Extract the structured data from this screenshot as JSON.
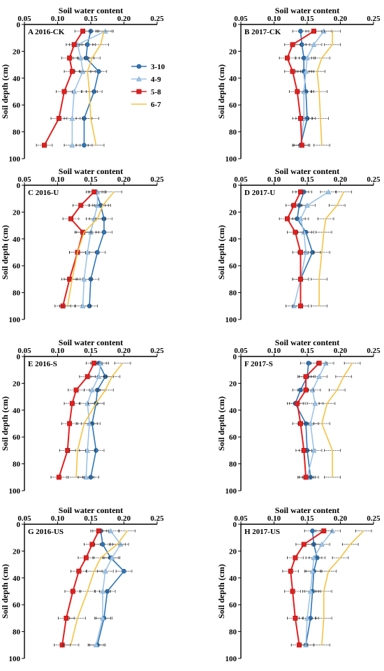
{
  "series_legend": [
    {
      "name": "3-10",
      "color": "#2e75b6",
      "marker": "circle"
    },
    {
      "name": "4-9",
      "color": "#9dc3e6",
      "marker": "triangle"
    },
    {
      "name": "5-8",
      "color": "#e02020",
      "marker": "square"
    },
    {
      "name": "6-7",
      "color": "#f5c242",
      "marker": "none"
    }
  ],
  "colors": {
    "series_3_10": "#2e75b6",
    "series_4_9": "#9dc3e6",
    "series_5_8": "#e02020",
    "series_6_7": "#f5c242",
    "error_bars": "#000000"
  },
  "chart_data": [
    {
      "type": "line",
      "panel_label": "A  2016-CK",
      "xlabel": "Soil water content",
      "ylabel": "Soil depth (cm)",
      "xlim": [
        0.05,
        0.25
      ],
      "ylim": [
        0,
        100
      ],
      "xticks": [
        "0.05",
        "0.10",
        "0.15",
        "0.20",
        "0.25"
      ],
      "yticks": [
        "0",
        "20",
        "40",
        "60",
        "80",
        "100"
      ],
      "y": [
        5,
        15,
        25,
        35,
        50,
        70,
        90
      ],
      "legend": "right-middle",
      "series": [
        {
          "name": "3-10",
          "values": [
            0.15,
            0.145,
            0.143,
            0.162,
            0.155,
            0.14,
            0.14
          ]
        },
        {
          "name": "4-9",
          "values": [
            0.172,
            0.13,
            0.135,
            0.138,
            0.125,
            0.122,
            0.122
          ]
        },
        {
          "name": "5-8",
          "values": [
            0.138,
            0.125,
            0.118,
            0.122,
            0.11,
            0.102,
            0.08
          ]
        },
        {
          "name": "6-7",
          "values": [
            0.17,
            0.165,
            0.152,
            0.145,
            0.148,
            0.15,
            0.158
          ]
        }
      ]
    },
    {
      "type": "line",
      "panel_label": "B  2017-CK",
      "xlabel": "Soil water content",
      "ylabel": "Soil depth (cm)",
      "xlim": [
        0.05,
        0.25
      ],
      "ylim": [
        0,
        100
      ],
      "xticks": [
        "0.05",
        "0.10",
        "0.15",
        "0.20",
        "0.25"
      ],
      "yticks": [
        "0",
        "20",
        "40",
        "60",
        "80",
        "100"
      ],
      "y": [
        5,
        15,
        25,
        35,
        50,
        70,
        90
      ],
      "series": [
        {
          "name": "3-10",
          "values": [
            0.14,
            0.142,
            0.145,
            0.145,
            0.148,
            0.15,
            0.14
          ]
        },
        {
          "name": "4-9",
          "values": [
            0.175,
            0.16,
            0.15,
            0.148,
            0.145,
            0.145,
            0.14
          ]
        },
        {
          "name": "5-8",
          "values": [
            0.16,
            0.128,
            0.12,
            0.128,
            0.135,
            0.14,
            0.142
          ]
        },
        {
          "name": "6-7",
          "values": [
            0.188,
            0.188,
            0.172,
            0.165,
            0.168,
            0.17,
            0.172
          ]
        }
      ]
    },
    {
      "type": "line",
      "panel_label": "C  2016-U",
      "xlabel": "Soil water content",
      "ylabel": "Soil depth (cm)",
      "xlim": [
        0.05,
        0.25
      ],
      "ylim": [
        0,
        100
      ],
      "xticks": [
        "0.05",
        "0.10",
        "0.15",
        "0.20",
        "0.25"
      ],
      "yticks": [
        "0",
        "20",
        "40",
        "60",
        "80",
        "100"
      ],
      "y": [
        5,
        15,
        25,
        35,
        50,
        70,
        90
      ],
      "series": [
        {
          "name": "3-10",
          "values": [
            0.158,
            0.165,
            0.17,
            0.17,
            0.16,
            0.15,
            0.148
          ]
        },
        {
          "name": "4-9",
          "values": [
            0.16,
            0.16,
            0.155,
            0.15,
            0.145,
            0.14,
            0.138
          ]
        },
        {
          "name": "5-8",
          "values": [
            0.155,
            0.135,
            0.12,
            0.138,
            0.13,
            0.118,
            0.108
          ]
        },
        {
          "name": "6-7",
          "values": [
            0.185,
            0.168,
            0.16,
            0.14,
            0.13,
            0.122,
            0.115
          ]
        }
      ]
    },
    {
      "type": "line",
      "panel_label": "D  2017-U",
      "xlabel": "Soil water content",
      "ylabel": "Soil depth (cm)",
      "xlim": [
        0.05,
        0.25
      ],
      "ylim": [
        0,
        100
      ],
      "xticks": [
        "0.05",
        "0.10",
        "0.15",
        "0.20",
        "0.25"
      ],
      "yticks": [
        "0",
        "20",
        "40",
        "60",
        "80",
        "100"
      ],
      "y": [
        5,
        15,
        25,
        35,
        50,
        70,
        90
      ],
      "series": [
        {
          "name": "3-10",
          "values": [
            0.145,
            0.138,
            0.135,
            0.148,
            0.158,
            0.14,
            0.14
          ]
        },
        {
          "name": "4-9",
          "values": [
            0.182,
            0.15,
            0.14,
            0.145,
            0.148,
            0.14,
            0.13
          ]
        },
        {
          "name": "5-8",
          "values": [
            0.14,
            0.13,
            0.12,
            0.132,
            0.14,
            0.14,
            0.14
          ]
        },
        {
          "name": "6-7",
          "values": [
            0.205,
            0.195,
            0.178,
            0.175,
            0.172,
            0.168,
            0.168
          ]
        }
      ]
    },
    {
      "type": "line",
      "panel_label": "E  2016-S",
      "xlabel": "Soil water content",
      "ylabel": "Soil depth (cm)",
      "xlim": [
        0.05,
        0.25
      ],
      "ylim": [
        0,
        100
      ],
      "xticks": [
        "0.05",
        "0.10",
        "0.15",
        "0.20",
        "0.25"
      ],
      "yticks": [
        "0",
        "20",
        "40",
        "60",
        "80",
        "100"
      ],
      "y": [
        5,
        15,
        25,
        35,
        50,
        70,
        90
      ],
      "series": [
        {
          "name": "3-10",
          "values": [
            0.162,
            0.172,
            0.16,
            0.158,
            0.152,
            0.158,
            0.15
          ]
        },
        {
          "name": "4-9",
          "values": [
            0.165,
            0.162,
            0.152,
            0.145,
            0.148,
            0.145,
            0.143
          ]
        },
        {
          "name": "5-8",
          "values": [
            0.155,
            0.145,
            0.128,
            0.122,
            0.118,
            0.115,
            0.102
          ]
        },
        {
          "name": "6-7",
          "values": [
            0.198,
            0.182,
            0.172,
            0.158,
            0.14,
            0.13,
            0.128
          ]
        }
      ]
    },
    {
      "type": "line",
      "panel_label": "F  2017-S",
      "xlabel": "Soil water content",
      "ylabel": "Soil depth (cm)",
      "xlim": [
        0.05,
        0.25
      ],
      "ylim": [
        0,
        100
      ],
      "xticks": [
        "0.05",
        "0.10",
        "0.15",
        "0.20",
        "0.25"
      ],
      "yticks": [
        "0",
        "20",
        "40",
        "60",
        "80",
        "100"
      ],
      "y": [
        5,
        15,
        25,
        35,
        50,
        70,
        90
      ],
      "series": [
        {
          "name": "3-10",
          "values": [
            0.152,
            0.15,
            0.14,
            0.132,
            0.148,
            0.15,
            0.155
          ]
        },
        {
          "name": "4-9",
          "values": [
            0.178,
            0.168,
            0.158,
            0.162,
            0.155,
            0.16,
            0.15
          ]
        },
        {
          "name": "5-8",
          "values": [
            0.168,
            0.148,
            0.148,
            0.135,
            0.14,
            0.145,
            0.148
          ]
        },
        {
          "name": "6-7",
          "values": [
            0.218,
            0.205,
            0.195,
            0.18,
            0.172,
            0.188,
            0.188
          ]
        }
      ]
    },
    {
      "type": "line",
      "panel_label": "G  2016-US",
      "xlabel": "Soil water content",
      "ylabel": "Soil depth (cm)",
      "xlim": [
        0.05,
        0.25
      ],
      "ylim": [
        0,
        100
      ],
      "xticks": [
        "0.05",
        "0.10",
        "0.15",
        "0.20",
        "0.25"
      ],
      "yticks": [
        "0",
        "20",
        "40",
        "60",
        "80",
        "100"
      ],
      "y": [
        5,
        15,
        25,
        35,
        50,
        70,
        90
      ],
      "series": [
        {
          "name": "3-10",
          "values": [
            0.165,
            0.168,
            0.18,
            0.2,
            0.175,
            0.17,
            0.16
          ]
        },
        {
          "name": "4-9",
          "values": [
            0.18,
            0.195,
            0.182,
            0.172,
            0.168,
            0.168,
            0.158
          ]
        },
        {
          "name": "5-8",
          "values": [
            0.162,
            0.152,
            0.143,
            0.132,
            0.123,
            0.113,
            0.107
          ]
        },
        {
          "name": "6-7",
          "values": [
            0.205,
            0.19,
            0.165,
            0.155,
            0.145,
            0.13,
            0.12
          ]
        }
      ]
    },
    {
      "type": "line",
      "panel_label": "H  2017-US",
      "xlabel": "Soil water content",
      "ylabel": "Soil depth (cm)",
      "xlim": [
        0.05,
        0.25
      ],
      "ylim": [
        0,
        100
      ],
      "xticks": [
        "0.05",
        "0.10",
        "0.15",
        "0.20",
        "0.25"
      ],
      "yticks": [
        "0",
        "20",
        "40",
        "60",
        "80",
        "100"
      ],
      "y": [
        5,
        15,
        25,
        35,
        50,
        70,
        90
      ],
      "series": [
        {
          "name": "3-10",
          "values": [
            0.158,
            0.16,
            0.165,
            0.16,
            0.158,
            0.155,
            0.148
          ]
        },
        {
          "name": "4-9",
          "values": [
            0.188,
            0.172,
            0.16,
            0.158,
            0.155,
            0.15,
            0.148
          ]
        },
        {
          "name": "5-8",
          "values": [
            0.175,
            0.145,
            0.132,
            0.125,
            0.128,
            0.132,
            0.138
          ]
        },
        {
          "name": "6-7",
          "values": [
            0.235,
            0.215,
            0.2,
            0.182,
            0.175,
            0.175,
            0.172
          ]
        }
      ]
    }
  ]
}
